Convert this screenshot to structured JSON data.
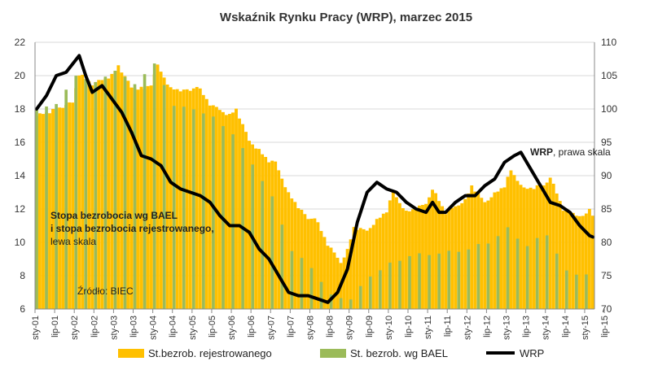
{
  "chart_data": {
    "type": "bar",
    "title": "Wskaźnik Rynku Pracy (WRP), marzec 2015",
    "source": "Źródło: BIEC",
    "left_axis": {
      "min": 6,
      "max": 22,
      "ticks": [
        "6",
        "8",
        "10",
        "12",
        "14",
        "16",
        "18",
        "20",
        "22"
      ]
    },
    "right_axis": {
      "min": 70,
      "max": 110,
      "ticks": [
        "70",
        "75",
        "80",
        "85",
        "90",
        "95",
        "100",
        "105",
        "110"
      ]
    },
    "x_ticks": [
      "sty-01",
      "lip-01",
      "sty-02",
      "lip-02",
      "sty-03",
      "lip-03",
      "sty-04",
      "lip-04",
      "sty-05",
      "lip-05",
      "sty-06",
      "lip-06",
      "sty-07",
      "lip-07",
      "sty-08",
      "lip-08",
      "sty-09",
      "lip-09",
      "sty-10",
      "lip-10",
      "sty-11",
      "lip-11",
      "sty-12",
      "lip-12",
      "sty-13",
      "lip-13",
      "sty-14",
      "lip-14",
      "sty-15",
      "lip-15"
    ],
    "x_start": "2001-01",
    "months_count": 171,
    "annotations": {
      "bael_line1": "Stopa bezrobocia wg BAEL",
      "bael_line2": "i stopa bezrobocia rejestrowanego,",
      "bael_line3": "lewa skala",
      "wrp_bold": "WRP",
      "wrp_rest": ", prawa skala"
    },
    "legend": {
      "registered": "St.bezrob. rejestrowanego",
      "bael": "St. bezrob. wg BAEL",
      "wrp": "WRP"
    },
    "colors": {
      "registered": "#FFC000",
      "bael": "#9BBB59",
      "wrp": "#000000",
      "axis": "#888888",
      "grid": "#d9d9d9"
    },
    "series": [
      {
        "name": "St.bezrob. rejestrowanego",
        "axis": "left",
        "knots": [
          [
            "2001-01",
            17.6
          ],
          [
            "2001-06",
            17.9
          ],
          [
            "2001-12",
            18.4
          ],
          [
            "2002-02",
            20.1
          ],
          [
            "2002-06",
            19.5
          ],
          [
            "2002-12",
            20.0
          ],
          [
            "2003-02",
            20.6
          ],
          [
            "2003-06",
            19.3
          ],
          [
            "2003-10",
            19.2
          ],
          [
            "2003-12",
            19.5
          ],
          [
            "2004-02",
            20.6
          ],
          [
            "2004-06",
            19.2
          ],
          [
            "2004-12",
            19.1
          ],
          [
            "2005-02",
            19.4
          ],
          [
            "2005-06",
            18.3
          ],
          [
            "2005-12",
            17.6
          ],
          [
            "2006-02",
            18.0
          ],
          [
            "2006-06",
            16.1
          ],
          [
            "2006-12",
            14.9
          ],
          [
            "2007-02",
            14.8
          ],
          [
            "2007-06",
            12.9
          ],
          [
            "2007-12",
            11.4
          ],
          [
            "2008-02",
            11.5
          ],
          [
            "2008-06",
            9.9
          ],
          [
            "2008-10",
            8.8
          ],
          [
            "2008-12",
            9.5
          ],
          [
            "2009-02",
            10.9
          ],
          [
            "2009-06",
            10.7
          ],
          [
            "2009-12",
            11.9
          ],
          [
            "2010-02",
            13.0
          ],
          [
            "2010-06",
            11.8
          ],
          [
            "2010-12",
            12.3
          ],
          [
            "2011-02",
            13.2
          ],
          [
            "2011-06",
            11.8
          ],
          [
            "2011-12",
            12.5
          ],
          [
            "2012-02",
            13.4
          ],
          [
            "2012-06",
            12.4
          ],
          [
            "2012-12",
            13.4
          ],
          [
            "2013-02",
            14.3
          ],
          [
            "2013-06",
            13.2
          ],
          [
            "2013-12",
            13.4
          ],
          [
            "2014-02",
            13.9
          ],
          [
            "2014-06",
            12.0
          ],
          [
            "2014-12",
            11.5
          ],
          [
            "2015-02",
            12.0
          ],
          [
            "2015-03",
            11.7
          ]
        ]
      },
      {
        "name": "St. bezrob. wg BAEL",
        "axis": "left",
        "knots": [
          [
            "2001-01",
            18.0
          ],
          [
            "2001-07",
            18.3
          ],
          [
            "2002-01",
            20.0
          ],
          [
            "2002-07",
            19.6
          ],
          [
            "2003-01",
            20.3
          ],
          [
            "2003-07",
            19.5
          ],
          [
            "2004-01",
            20.7
          ],
          [
            "2004-07",
            18.2
          ],
          [
            "2005-01",
            18.0
          ],
          [
            "2005-07",
            17.5
          ],
          [
            "2006-01",
            16.5
          ],
          [
            "2006-07",
            14.7
          ],
          [
            "2007-01",
            12.7
          ],
          [
            "2007-07",
            9.5
          ],
          [
            "2008-01",
            8.5
          ],
          [
            "2008-07",
            6.8
          ],
          [
            "2009-01",
            6.6
          ],
          [
            "2009-07",
            8.0
          ],
          [
            "2010-01",
            8.7
          ],
          [
            "2010-07",
            9.2
          ],
          [
            "2011-01",
            9.3
          ],
          [
            "2011-07",
            9.4
          ],
          [
            "2012-01",
            9.6
          ],
          [
            "2012-07",
            10.0
          ],
          [
            "2013-01",
            10.8
          ],
          [
            "2013-07",
            9.8
          ],
          [
            "2014-01",
            10.5
          ],
          [
            "2014-07",
            8.2
          ],
          [
            "2015-01",
            8.1
          ]
        ]
      },
      {
        "name": "WRP",
        "axis": "right",
        "knots": [
          [
            "2001-01",
            100.0
          ],
          [
            "2001-04",
            102.0
          ],
          [
            "2001-07",
            105.0
          ],
          [
            "2001-10",
            105.5
          ],
          [
            "2002-02",
            108.0
          ],
          [
            "2002-04",
            105.0
          ],
          [
            "2002-06",
            102.5
          ],
          [
            "2002-09",
            103.5
          ],
          [
            "2002-12",
            101.5
          ],
          [
            "2003-03",
            99.5
          ],
          [
            "2003-06",
            96.5
          ],
          [
            "2003-09",
            93.0
          ],
          [
            "2003-12",
            92.5
          ],
          [
            "2004-03",
            91.5
          ],
          [
            "2004-06",
            89.0
          ],
          [
            "2004-09",
            88.0
          ],
          [
            "2004-12",
            87.5
          ],
          [
            "2005-03",
            87.0
          ],
          [
            "2005-06",
            86.0
          ],
          [
            "2005-09",
            84.0
          ],
          [
            "2005-12",
            82.5
          ],
          [
            "2006-03",
            82.5
          ],
          [
            "2006-06",
            81.5
          ],
          [
            "2006-09",
            79.0
          ],
          [
            "2006-12",
            77.5
          ],
          [
            "2007-03",
            75.0
          ],
          [
            "2007-06",
            72.5
          ],
          [
            "2007-09",
            72.0
          ],
          [
            "2007-12",
            72.0
          ],
          [
            "2008-03",
            71.5
          ],
          [
            "2008-06",
            71.0
          ],
          [
            "2008-09",
            72.5
          ],
          [
            "2008-12",
            76.0
          ],
          [
            "2009-03",
            83.0
          ],
          [
            "2009-06",
            87.5
          ],
          [
            "2009-09",
            89.0
          ],
          [
            "2009-12",
            88.0
          ],
          [
            "2010-03",
            87.5
          ],
          [
            "2010-06",
            86.0
          ],
          [
            "2010-09",
            85.0
          ],
          [
            "2010-12",
            84.5
          ],
          [
            "2011-02",
            86.0
          ],
          [
            "2011-04",
            84.5
          ],
          [
            "2011-06",
            84.5
          ],
          [
            "2011-09",
            86.0
          ],
          [
            "2011-12",
            87.0
          ],
          [
            "2012-03",
            87.0
          ],
          [
            "2012-06",
            88.5
          ],
          [
            "2012-09",
            89.5
          ],
          [
            "2012-12",
            92.0
          ],
          [
            "2013-03",
            93.0
          ],
          [
            "2013-05",
            93.5
          ],
          [
            "2013-08",
            91.0
          ],
          [
            "2013-11",
            88.5
          ],
          [
            "2014-02",
            86.0
          ],
          [
            "2014-05",
            85.5
          ],
          [
            "2014-08",
            84.5
          ],
          [
            "2014-11",
            82.5
          ],
          [
            "2015-02",
            81.0
          ],
          [
            "2015-03",
            80.8
          ]
        ]
      }
    ]
  }
}
